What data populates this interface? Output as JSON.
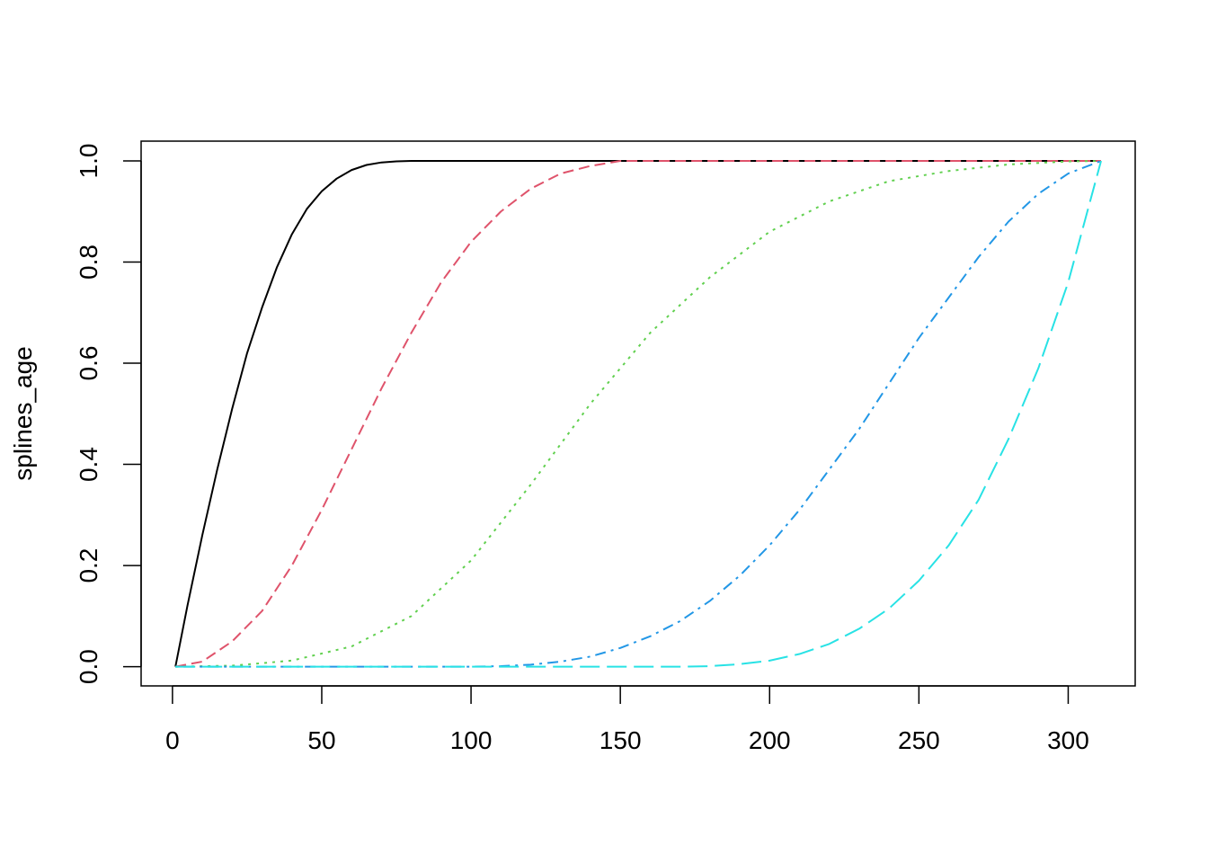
{
  "chart_data": {
    "type": "line",
    "title": "",
    "xlabel": "",
    "ylabel": "splines_age",
    "xlim": [
      0,
      311
    ],
    "ylim": [
      0,
      1
    ],
    "xticks": [
      0,
      50,
      100,
      150,
      200,
      250,
      300
    ],
    "yticks": [
      "0.0",
      "0.2",
      "0.4",
      "0.6",
      "0.8",
      "1.0"
    ],
    "grid": false,
    "legend": "none",
    "series": [
      {
        "color": "#000000",
        "linestyle": "solid",
        "x": [
          1,
          5,
          10,
          15,
          20,
          25,
          30,
          35,
          40,
          45,
          50,
          55,
          60,
          65,
          70,
          75,
          80,
          100,
          150,
          200,
          250,
          311
        ],
        "values": [
          0.0,
          0.12,
          0.26,
          0.39,
          0.51,
          0.62,
          0.71,
          0.79,
          0.855,
          0.905,
          0.94,
          0.965,
          0.982,
          0.992,
          0.997,
          0.999,
          1.0,
          1.0,
          1.0,
          1.0,
          1.0,
          1.0
        ]
      },
      {
        "color": "#DF536B",
        "linestyle": "dashed",
        "x": [
          1,
          10,
          20,
          30,
          40,
          50,
          60,
          70,
          80,
          90,
          100,
          110,
          120,
          130,
          140,
          150,
          200,
          250,
          311
        ],
        "values": [
          0.0,
          0.01,
          0.05,
          0.11,
          0.2,
          0.31,
          0.43,
          0.55,
          0.66,
          0.76,
          0.84,
          0.9,
          0.945,
          0.975,
          0.99,
          1.0,
          1.0,
          1.0,
          1.0
        ]
      },
      {
        "color": "#61D04F",
        "linestyle": "dotted",
        "x": [
          1,
          20,
          40,
          60,
          80,
          100,
          120,
          140,
          160,
          180,
          200,
          220,
          240,
          260,
          280,
          300,
          311
        ],
        "values": [
          0.0,
          0.002,
          0.012,
          0.04,
          0.1,
          0.21,
          0.36,
          0.52,
          0.66,
          0.77,
          0.86,
          0.92,
          0.96,
          0.98,
          0.993,
          0.999,
          1.0
        ]
      },
      {
        "color": "#2297E6",
        "linestyle": "dotdash",
        "x": [
          1,
          50,
          100,
          110,
          120,
          130,
          140,
          150,
          160,
          170,
          180,
          190,
          200,
          210,
          220,
          230,
          240,
          250,
          260,
          270,
          280,
          290,
          300,
          311
        ],
        "values": [
          0.0,
          0.0,
          0.0,
          0.001,
          0.004,
          0.01,
          0.02,
          0.037,
          0.06,
          0.09,
          0.13,
          0.18,
          0.24,
          0.31,
          0.39,
          0.47,
          0.56,
          0.65,
          0.73,
          0.81,
          0.88,
          0.935,
          0.975,
          1.0
        ]
      },
      {
        "color": "#28E2E5",
        "linestyle": "longdash",
        "x": [
          1,
          100,
          170,
          180,
          190,
          200,
          210,
          220,
          230,
          240,
          250,
          260,
          270,
          280,
          290,
          300,
          311
        ],
        "values": [
          0.0,
          0.0,
          0.0,
          0.001,
          0.005,
          0.012,
          0.025,
          0.045,
          0.075,
          0.115,
          0.17,
          0.24,
          0.33,
          0.45,
          0.59,
          0.76,
          1.0
        ]
      }
    ]
  }
}
